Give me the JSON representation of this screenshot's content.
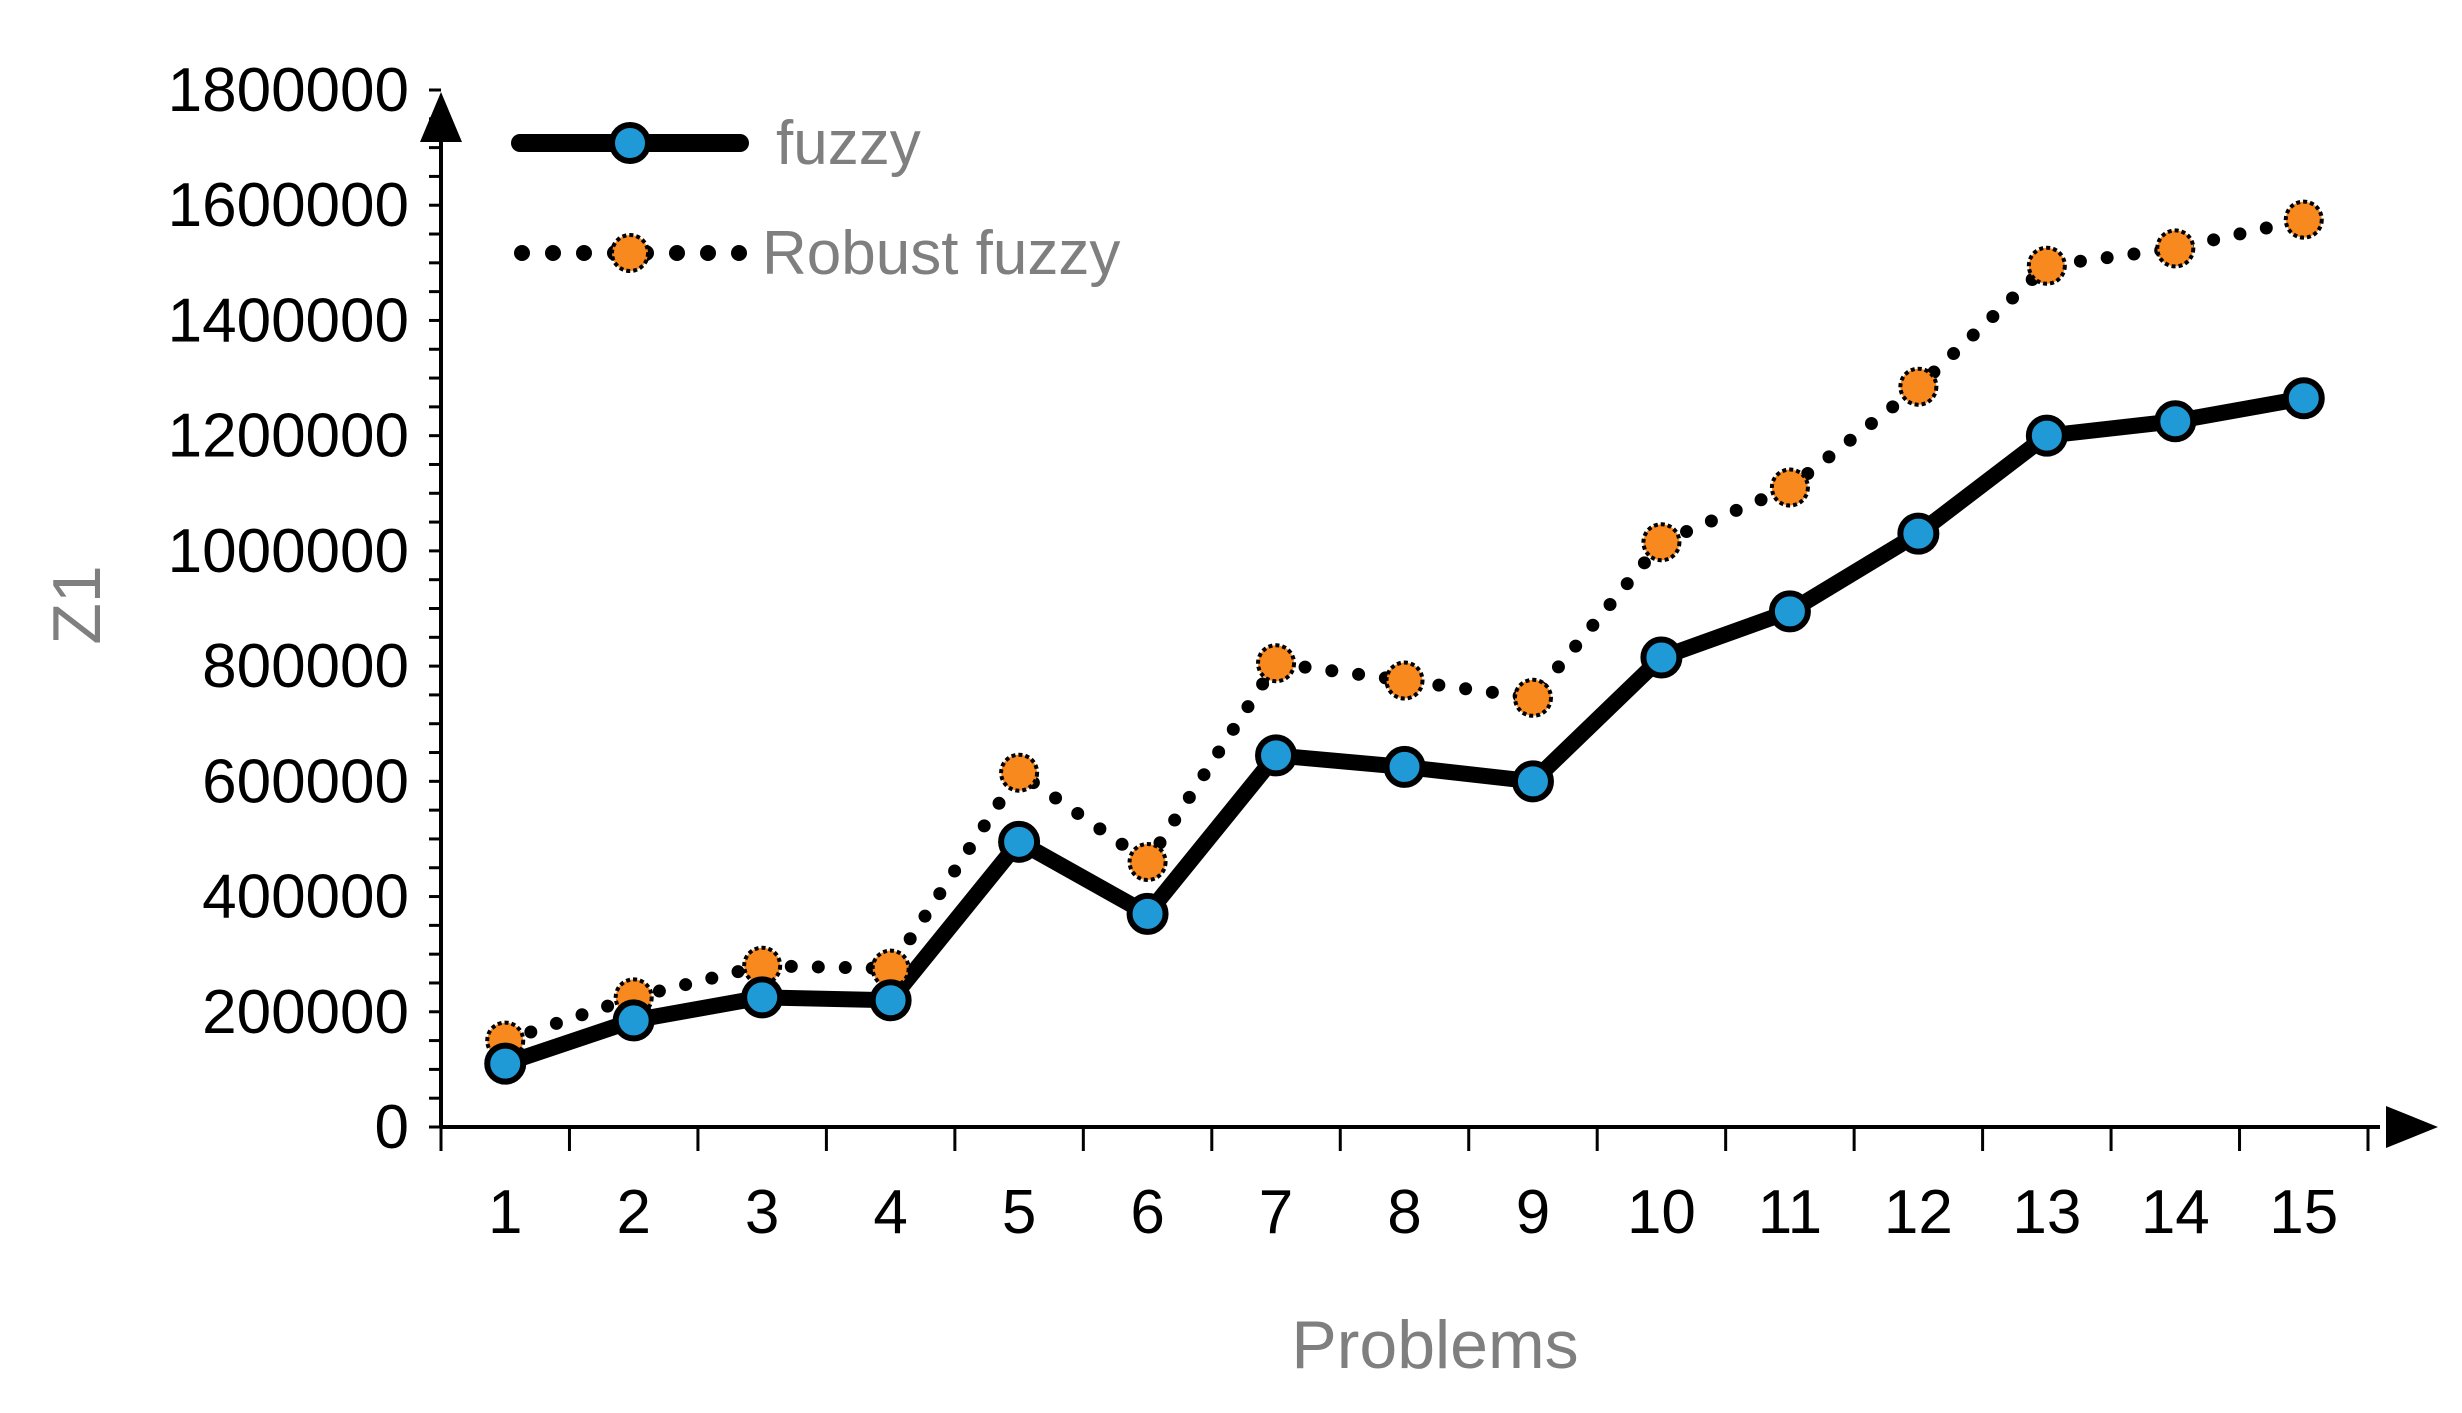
{
  "chart_data": {
    "type": "line",
    "title": "",
    "xlabel": "Problems",
    "ylabel": "Z1",
    "categories": [
      "1",
      "2",
      "3",
      "4",
      "5",
      "6",
      "7",
      "8",
      "9",
      "10",
      "11",
      "12",
      "13",
      "14",
      "15"
    ],
    "ylim": [
      0,
      1800000
    ],
    "yticks": [
      "0",
      "200000",
      "400000",
      "600000",
      "800000",
      "1000000",
      "1200000",
      "1400000",
      "1600000",
      "1800000"
    ],
    "grid": false,
    "legend_position": "top-left",
    "series": [
      {
        "name": "fuzzy",
        "values": [
          110000,
          185000,
          225000,
          220000,
          495000,
          370000,
          645000,
          625000,
          600000,
          815000,
          895000,
          1030000,
          1200000,
          1225000,
          1265000
        ],
        "line_color": "#000000",
        "marker_color": "#1f9ad6",
        "line_style": "solid"
      },
      {
        "name": "Robust fuzzy",
        "values": [
          150000,
          225000,
          280000,
          275000,
          615000,
          460000,
          805000,
          775000,
          745000,
          1015000,
          1110000,
          1285000,
          1495000,
          1525000,
          1575000
        ],
        "line_color": "#000000",
        "marker_color": "#f7891f",
        "line_style": "dotted"
      }
    ]
  }
}
